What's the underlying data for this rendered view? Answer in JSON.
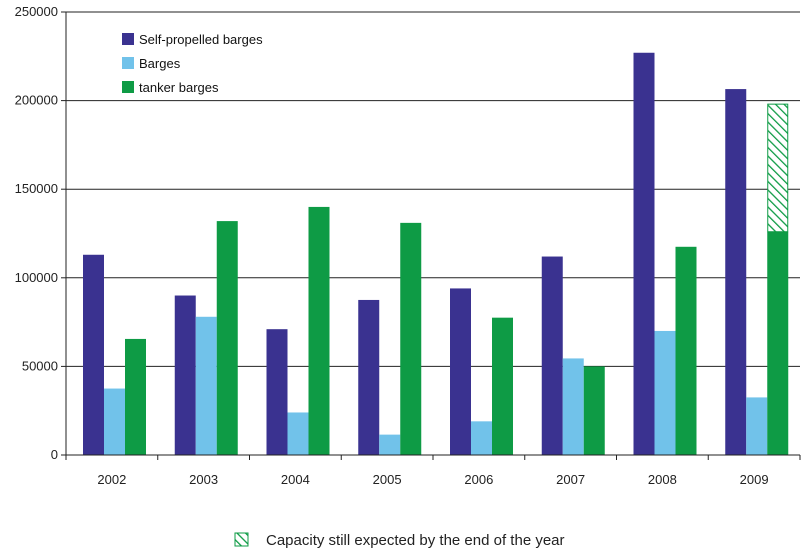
{
  "chart_data": {
    "type": "bar",
    "categories": [
      "2002",
      "2003",
      "2004",
      "2005",
      "2006",
      "2007",
      "2008",
      "2009"
    ],
    "series": [
      {
        "name": "Self-propelled barges",
        "color": "#3a3290",
        "values": [
          113000,
          90000,
          71000,
          87500,
          94000,
          112000,
          227000,
          206500
        ]
      },
      {
        "name": "Barges",
        "color": "#71c2ea",
        "values": [
          37500,
          78000,
          24000,
          11500,
          19000,
          54500,
          70000,
          32500
        ]
      },
      {
        "name": "tanker barges",
        "color": "#0e9b45",
        "values": [
          65500,
          132000,
          140000,
          131000,
          77500,
          50000,
          117500,
          126000
        ]
      }
    ],
    "expected_capacity": {
      "category": "2009",
      "series": "tanker barges",
      "from": 126000,
      "to": 198000,
      "label": "Capacity still expected by the end of the year"
    },
    "ylim": [
      0,
      250000
    ],
    "yticks": [
      "0",
      "50000",
      "100000",
      "150000",
      "200000",
      "250000"
    ],
    "grid": true,
    "legend_placement": "top-left"
  }
}
